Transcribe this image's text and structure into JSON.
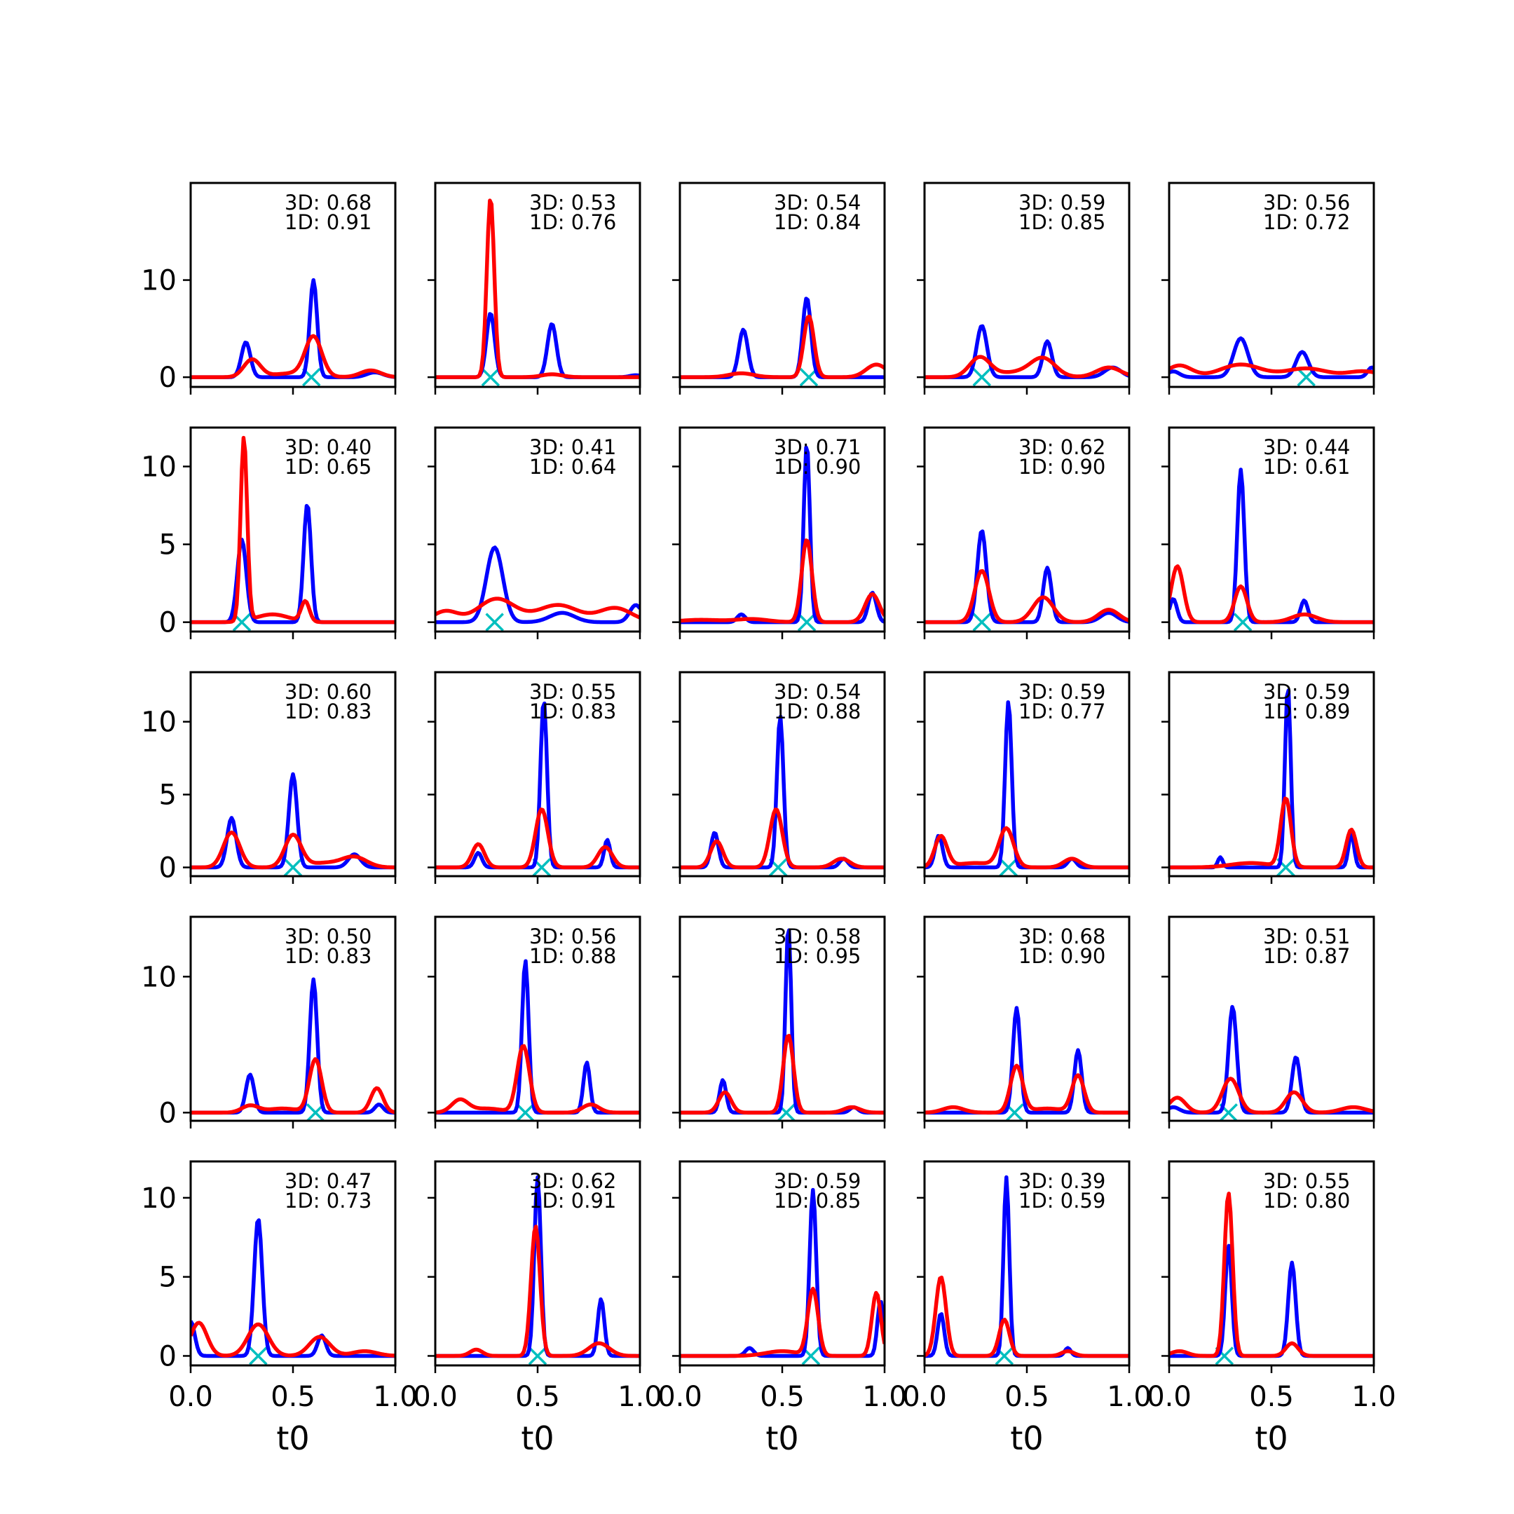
{
  "chart_data": {
    "type": "line",
    "layout": "5x5 grid of subplots",
    "xlabel": "t0",
    "xlim": [
      0,
      1
    ],
    "xticks": [
      "0.0",
      "0.5",
      "1.0"
    ],
    "colors": {
      "blue_series": "#0000ff",
      "red_series": "#ff0000",
      "marker": "#00bfbf"
    },
    "marker_symbol": "x",
    "rows": [
      {
        "ylim": [
          -1,
          20
        ],
        "yticks": [
          0,
          10
        ]
      },
      {
        "ylim": [
          -0.6,
          12.5
        ],
        "yticks": [
          0,
          5,
          10
        ]
      },
      {
        "ylim": [
          -0.6,
          13.4
        ],
        "yticks": [
          0,
          5,
          10
        ]
      },
      {
        "ylim": [
          -0.6,
          14.4
        ],
        "yticks": [
          0,
          10
        ]
      },
      {
        "ylim": [
          -0.6,
          12.3
        ],
        "yticks": [
          0,
          5,
          10
        ]
      }
    ],
    "subplots": [
      {
        "ann3d": "3D: 0.68",
        "ann1d": "1D: 0.91",
        "marker_x": 0.59,
        "blue": [
          [
            0.27,
            3.6,
            0.022
          ],
          [
            0.6,
            10,
            0.018
          ],
          [
            0.9,
            0.5,
            0.04
          ]
        ],
        "red": [
          [
            0.3,
            1.8,
            0.04
          ],
          [
            0.6,
            4,
            0.04
          ],
          [
            0.88,
            0.7,
            0.05
          ],
          [
            0.5,
            0.4,
            0.1
          ]
        ]
      },
      {
        "ann3d": "3D: 0.53",
        "ann1d": "1D: 0.76",
        "marker_x": 0.27,
        "blue": [
          [
            0.27,
            6.6,
            0.02
          ],
          [
            0.57,
            5.5,
            0.022
          ],
          [
            0.98,
            0.2,
            0.03
          ]
        ],
        "red": [
          [
            0.27,
            18.5,
            0.018
          ],
          [
            0.57,
            0.3,
            0.05
          ]
        ]
      },
      {
        "ann3d": "3D: 0.54",
        "ann1d": "1D: 0.84",
        "marker_x": 0.63,
        "blue": [
          [
            0.31,
            4.9,
            0.022
          ],
          [
            0.62,
            8.2,
            0.02
          ]
        ],
        "red": [
          [
            0.3,
            0.4,
            0.06
          ],
          [
            0.63,
            6.3,
            0.025
          ],
          [
            0.96,
            1.3,
            0.05
          ]
        ]
      },
      {
        "ann3d": "3D: 0.59",
        "ann1d": "1D: 0.85",
        "marker_x": 0.28,
        "blue": [
          [
            0.28,
            5.3,
            0.025
          ],
          [
            0.6,
            3.7,
            0.022
          ],
          [
            0.92,
            1,
            0.04
          ]
        ],
        "red": [
          [
            0.27,
            2,
            0.05
          ],
          [
            0.58,
            1.8,
            0.06
          ],
          [
            0.9,
            1,
            0.06
          ],
          [
            0.45,
            0.5,
            0.1
          ]
        ]
      },
      {
        "ann3d": "3D: 0.56",
        "ann1d": "1D: 0.72",
        "marker_x": 0.67,
        "blue": [
          [
            0.02,
            0.6,
            0.03
          ],
          [
            0.35,
            4,
            0.035
          ],
          [
            0.65,
            2.6,
            0.03
          ],
          [
            0.99,
            1,
            0.02
          ]
        ],
        "red": [
          [
            0.05,
            1.2,
            0.06
          ],
          [
            0.35,
            1.3,
            0.1
          ],
          [
            0.67,
            0.9,
            0.1
          ],
          [
            0.95,
            0.6,
            0.08
          ]
        ]
      },
      {
        "ann3d": "3D: 0.40",
        "ann1d": "1D: 0.65",
        "marker_x": 0.25,
        "blue": [
          [
            0.25,
            5.3,
            0.022
          ],
          [
            0.57,
            7.6,
            0.018
          ]
        ],
        "red": [
          [
            0.26,
            11.8,
            0.016
          ],
          [
            0.56,
            1.3,
            0.02
          ],
          [
            0.4,
            0.5,
            0.08
          ]
        ]
      },
      {
        "ann3d": "3D: 0.41",
        "ann1d": "1D: 0.64",
        "marker_x": 0.29,
        "blue": [
          [
            0.29,
            4.8,
            0.04
          ],
          [
            0.62,
            0.6,
            0.06
          ],
          [
            0.98,
            1.1,
            0.03
          ]
        ],
        "red": [
          [
            0.3,
            1.5,
            0.09
          ],
          [
            0.6,
            1.1,
            0.1
          ],
          [
            0.05,
            0.7,
            0.06
          ],
          [
            0.88,
            0.9,
            0.08
          ]
        ]
      },
      {
        "ann3d": "3D: 0.71",
        "ann1d": "1D: 0.90",
        "marker_x": 0.62,
        "blue": [
          [
            0.3,
            0.5,
            0.02
          ],
          [
            0.62,
            11.5,
            0.015
          ],
          [
            0.94,
            1.9,
            0.02
          ]
        ],
        "red": [
          [
            0.62,
            5.3,
            0.025
          ],
          [
            0.94,
            1.8,
            0.035
          ],
          [
            0.1,
            0.15,
            0.1
          ],
          [
            0.35,
            0.2,
            0.08
          ]
        ]
      },
      {
        "ann3d": "3D: 0.62",
        "ann1d": "1D: 0.90",
        "marker_x": 0.28,
        "blue": [
          [
            0.28,
            5.9,
            0.022
          ],
          [
            0.6,
            3.5,
            0.02
          ],
          [
            0.9,
            0.6,
            0.04
          ]
        ],
        "red": [
          [
            0.28,
            3.3,
            0.035
          ],
          [
            0.58,
            1.6,
            0.05
          ],
          [
            0.9,
            0.8,
            0.05
          ]
        ]
      },
      {
        "ann3d": "3D: 0.44",
        "ann1d": "1D: 0.61",
        "marker_x": 0.36,
        "blue": [
          [
            0.02,
            1.5,
            0.018
          ],
          [
            0.35,
            9.8,
            0.017
          ],
          [
            0.66,
            1.4,
            0.018
          ]
        ],
        "red": [
          [
            0.04,
            3.6,
            0.03
          ],
          [
            0.35,
            2.3,
            0.03
          ],
          [
            0.66,
            0.5,
            0.06
          ]
        ]
      },
      {
        "ann3d": "3D: 0.60",
        "ann1d": "1D: 0.83",
        "marker_x": 0.5,
        "blue": [
          [
            0.2,
            3.4,
            0.022
          ],
          [
            0.5,
            6.4,
            0.02
          ],
          [
            0.8,
            0.9,
            0.03
          ]
        ],
        "red": [
          [
            0.2,
            2.4,
            0.04
          ],
          [
            0.5,
            2.2,
            0.04
          ],
          [
            0.8,
            0.7,
            0.06
          ],
          [
            0.65,
            0.3,
            0.08
          ]
        ]
      },
      {
        "ann3d": "3D: 0.55",
        "ann1d": "1D: 0.83",
        "marker_x": 0.52,
        "blue": [
          [
            0.21,
            1,
            0.018
          ],
          [
            0.53,
            11.5,
            0.016
          ],
          [
            0.84,
            1.9,
            0.015
          ]
        ],
        "red": [
          [
            0.21,
            1.6,
            0.03
          ],
          [
            0.52,
            4,
            0.03
          ],
          [
            0.83,
            1.4,
            0.035
          ]
        ]
      },
      {
        "ann3d": "3D: 0.54",
        "ann1d": "1D: 0.88",
        "marker_x": 0.48,
        "blue": [
          [
            0.17,
            2.4,
            0.018
          ],
          [
            0.49,
            10.4,
            0.016
          ],
          [
            0.8,
            0.6,
            0.02
          ]
        ],
        "red": [
          [
            0.18,
            1.8,
            0.03
          ],
          [
            0.47,
            4,
            0.03
          ],
          [
            0.79,
            0.6,
            0.04
          ]
        ]
      },
      {
        "ann3d": "3D: 0.59",
        "ann1d": "1D: 0.77",
        "marker_x": 0.41,
        "blue": [
          [
            0.07,
            2.2,
            0.018
          ],
          [
            0.41,
            11.4,
            0.016
          ],
          [
            0.72,
            0.6,
            0.02
          ]
        ],
        "red": [
          [
            0.08,
            2.1,
            0.03
          ],
          [
            0.4,
            2.6,
            0.035
          ],
          [
            0.72,
            0.6,
            0.04
          ],
          [
            0.25,
            0.3,
            0.1
          ]
        ]
      },
      {
        "ann3d": "3D: 0.59",
        "ann1d": "1D: 0.89",
        "marker_x": 0.57,
        "blue": [
          [
            0.25,
            0.7,
            0.012
          ],
          [
            0.58,
            12.5,
            0.014
          ],
          [
            0.89,
            2.3,
            0.014
          ]
        ],
        "red": [
          [
            0.57,
            4.7,
            0.025
          ],
          [
            0.89,
            2.6,
            0.025
          ],
          [
            0.4,
            0.3,
            0.1
          ]
        ]
      },
      {
        "ann3d": "3D: 0.50",
        "ann1d": "1D: 0.83",
        "marker_x": 0.61,
        "blue": [
          [
            0.29,
            2.8,
            0.02
          ],
          [
            0.6,
            9.8,
            0.018
          ],
          [
            0.92,
            0.6,
            0.02
          ]
        ],
        "red": [
          [
            0.29,
            0.5,
            0.04
          ],
          [
            0.61,
            3.9,
            0.03
          ],
          [
            0.91,
            1.8,
            0.03
          ],
          [
            0.45,
            0.3,
            0.08
          ]
        ]
      },
      {
        "ann3d": "3D: 0.56",
        "ann1d": "1D: 0.88",
        "marker_x": 0.44,
        "blue": [
          [
            0.44,
            11.2,
            0.016
          ],
          [
            0.74,
            3.7,
            0.016
          ]
        ],
        "red": [
          [
            0.12,
            0.9,
            0.04
          ],
          [
            0.43,
            4.9,
            0.03
          ],
          [
            0.76,
            0.6,
            0.04
          ],
          [
            0.25,
            0.3,
            0.08
          ]
        ]
      },
      {
        "ann3d": "3D: 0.58",
        "ann1d": "1D: 0.95",
        "marker_x": 0.52,
        "blue": [
          [
            0.21,
            2.4,
            0.016
          ],
          [
            0.53,
            13.8,
            0.014
          ],
          [
            0.85,
            0.4,
            0.02
          ]
        ],
        "red": [
          [
            0.22,
            1.5,
            0.03
          ],
          [
            0.53,
            5.7,
            0.025
          ],
          [
            0.84,
            0.4,
            0.04
          ]
        ]
      },
      {
        "ann3d": "3D: 0.68",
        "ann1d": "1D: 0.90",
        "marker_x": 0.44,
        "blue": [
          [
            0.45,
            7.7,
            0.018
          ],
          [
            0.75,
            4.6,
            0.018
          ]
        ],
        "red": [
          [
            0.45,
            3.4,
            0.03
          ],
          [
            0.75,
            2.7,
            0.03
          ],
          [
            0.14,
            0.4,
            0.05
          ],
          [
            0.6,
            0.3,
            0.08
          ]
        ]
      },
      {
        "ann3d": "3D: 0.51",
        "ann1d": "1D: 0.87",
        "marker_x": 0.29,
        "blue": [
          [
            0.31,
            7.8,
            0.02
          ],
          [
            0.62,
            4.1,
            0.02
          ],
          [
            0.02,
            0.4,
            0.03
          ]
        ],
        "red": [
          [
            0.04,
            1.1,
            0.04
          ],
          [
            0.3,
            2.5,
            0.04
          ],
          [
            0.61,
            1.5,
            0.04
          ],
          [
            0.9,
            0.4,
            0.06
          ]
        ]
      },
      {
        "ann3d": "3D: 0.47",
        "ann1d": "1D: 0.73",
        "marker_x": 0.33,
        "blue": [
          [
            0.0,
            2.2,
            0.02
          ],
          [
            0.33,
            8.7,
            0.02
          ],
          [
            0.64,
            1.3,
            0.02
          ]
        ],
        "red": [
          [
            0.04,
            2.1,
            0.04
          ],
          [
            0.33,
            2,
            0.05
          ],
          [
            0.63,
            1.2,
            0.05
          ],
          [
            0.85,
            0.3,
            0.06
          ]
        ]
      },
      {
        "ann3d": "3D: 0.62",
        "ann1d": "1D: 0.91",
        "marker_x": 0.5,
        "blue": [
          [
            0.5,
            11.3,
            0.016
          ],
          [
            0.81,
            3.6,
            0.016
          ]
        ],
        "red": [
          [
            0.49,
            8.2,
            0.022
          ],
          [
            0.2,
            0.4,
            0.03
          ],
          [
            0.8,
            0.8,
            0.05
          ]
        ]
      },
      {
        "ann3d": "3D: 0.59",
        "ann1d": "1D: 0.85",
        "marker_x": 0.64,
        "blue": [
          [
            0.34,
            0.5,
            0.02
          ],
          [
            0.65,
            10.5,
            0.016
          ],
          [
            0.98,
            3.5,
            0.015
          ]
        ],
        "red": [
          [
            0.65,
            4.2,
            0.025
          ],
          [
            0.96,
            4,
            0.022
          ],
          [
            0.5,
            0.3,
            0.08
          ]
        ]
      },
      {
        "ann3d": "3D: 0.39",
        "ann1d": "1D: 0.59",
        "marker_x": 0.39,
        "blue": [
          [
            0.08,
            2.7,
            0.016
          ],
          [
            0.4,
            11.3,
            0.014
          ],
          [
            0.7,
            0.5,
            0.015
          ]
        ],
        "red": [
          [
            0.08,
            5,
            0.025
          ],
          [
            0.39,
            2.3,
            0.025
          ],
          [
            0.7,
            0.3,
            0.03
          ]
        ]
      },
      {
        "ann3d": "3D: 0.55",
        "ann1d": "1D: 0.80",
        "marker_x": 0.27,
        "blue": [
          [
            0.29,
            7,
            0.016
          ],
          [
            0.6,
            5.9,
            0.018
          ]
        ],
        "red": [
          [
            0.29,
            10.3,
            0.02
          ],
          [
            0.6,
            0.8,
            0.03
          ],
          [
            0.05,
            0.3,
            0.04
          ]
        ]
      }
    ]
  }
}
